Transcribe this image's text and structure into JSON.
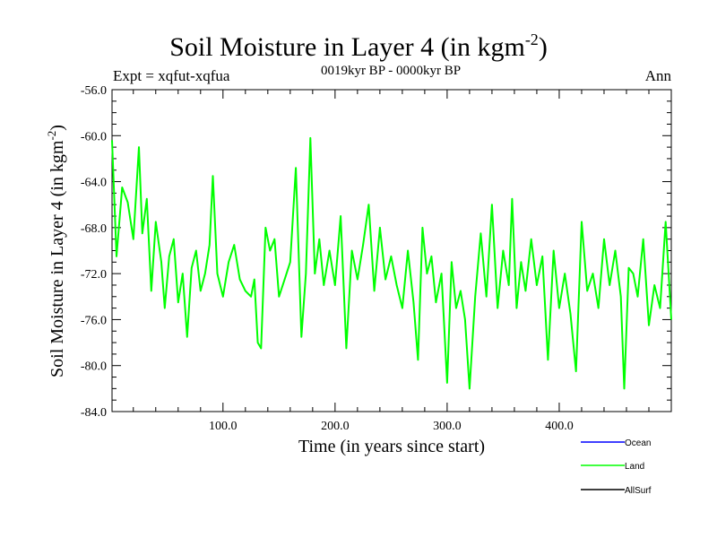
{
  "chart_data": {
    "type": "line",
    "title": "Soil Moisture in Layer 4 (in kgm",
    "title_sup": "-2",
    "title_close": ")",
    "subtitle_left": "Expt = xqfut-xqfua",
    "subtitle_center": "0019kyr BP - 0000kyr BP",
    "subtitle_right": "Ann",
    "xlabel": "Time (in years since start)",
    "ylabel": "Soil Moisture in Layer 4 (in kgm",
    "ylabel_sup": "-2",
    "ylabel_close": ")",
    "xlim": [
      1,
      500
    ],
    "ylim": [
      -84,
      -56
    ],
    "xticks": [
      100,
      200,
      300,
      400
    ],
    "xtick_labels": [
      "100.0",
      "200.0",
      "300.0",
      "400.0"
    ],
    "yticks": [
      -84,
      -80,
      -76,
      -72,
      -68,
      -64,
      -60,
      -56
    ],
    "ytick_labels": [
      "-84.0",
      "-80.0",
      "-76.0",
      "-72.0",
      "-68.0",
      "-64.0",
      "-60.0",
      "-56.0"
    ],
    "legend": [
      {
        "name": "Ocean",
        "color": "#0000ff"
      },
      {
        "name": "Land",
        "color": "#00ff00"
      },
      {
        "name": "AllSurf",
        "color": "#000000"
      }
    ],
    "series": [
      {
        "name": "Land",
        "color": "#00ff00",
        "x": [
          1,
          5,
          10,
          15,
          20,
          25,
          28,
          32,
          36,
          40,
          45,
          48,
          52,
          56,
          60,
          64,
          68,
          72,
          76,
          80,
          84,
          88,
          91,
          95,
          100,
          105,
          110,
          115,
          120,
          125,
          128,
          131,
          134,
          138,
          142,
          146,
          150,
          155,
          160,
          165,
          170,
          174,
          178,
          182,
          186,
          190,
          195,
          200,
          205,
          210,
          215,
          220,
          225,
          230,
          235,
          240,
          245,
          250,
          255,
          260,
          265,
          270,
          274,
          278,
          282,
          286,
          290,
          295,
          300,
          304,
          308,
          312,
          316,
          320,
          325,
          330,
          335,
          340,
          345,
          350,
          355,
          358,
          362,
          366,
          370,
          375,
          380,
          385,
          390,
          395,
          400,
          405,
          410,
          415,
          420,
          425,
          430,
          435,
          440,
          445,
          450,
          455,
          458,
          462,
          466,
          470,
          475,
          480,
          485,
          490,
          495,
          500
        ],
        "values": [
          -60.4,
          -70.5,
          -64.5,
          -65.8,
          -69.0,
          -61.0,
          -68.5,
          -65.5,
          -73.5,
          -67.5,
          -71.0,
          -75.0,
          -70.5,
          -69.0,
          -74.5,
          -72.0,
          -77.5,
          -71.5,
          -70.0,
          -73.5,
          -72.0,
          -69.5,
          -63.5,
          -72.0,
          -74.0,
          -71.0,
          -69.5,
          -72.5,
          -73.5,
          -74.0,
          -72.5,
          -78.0,
          -78.5,
          -68.0,
          -70.0,
          -69.0,
          -74.0,
          -72.5,
          -71.0,
          -62.8,
          -77.5,
          -72.0,
          -60.2,
          -72.0,
          -69.0,
          -73.0,
          -70.0,
          -73.0,
          -67.0,
          -78.5,
          -70.0,
          -72.5,
          -69.5,
          -66.0,
          -73.5,
          -68.0,
          -72.5,
          -70.5,
          -73.0,
          -75.0,
          -70.0,
          -74.5,
          -79.5,
          -68.0,
          -72.0,
          -70.5,
          -74.5,
          -72.0,
          -81.5,
          -71.0,
          -75.0,
          -73.5,
          -76.0,
          -82.0,
          -74.0,
          -68.5,
          -74.0,
          -66.0,
          -75.0,
          -70.0,
          -73.0,
          -65.5,
          -75.0,
          -71.0,
          -73.5,
          -69.0,
          -73.0,
          -70.5,
          -79.5,
          -70.0,
          -75.0,
          -72.0,
          -75.5,
          -80.5,
          -67.5,
          -73.5,
          -72.0,
          -75.0,
          -69.0,
          -73.0,
          -70.0,
          -74.0,
          -82.0,
          -71.5,
          -72.0,
          -74.0,
          -69.0,
          -76.5,
          -73.0,
          -75.0,
          -67.5,
          -76.0
        ]
      }
    ]
  }
}
